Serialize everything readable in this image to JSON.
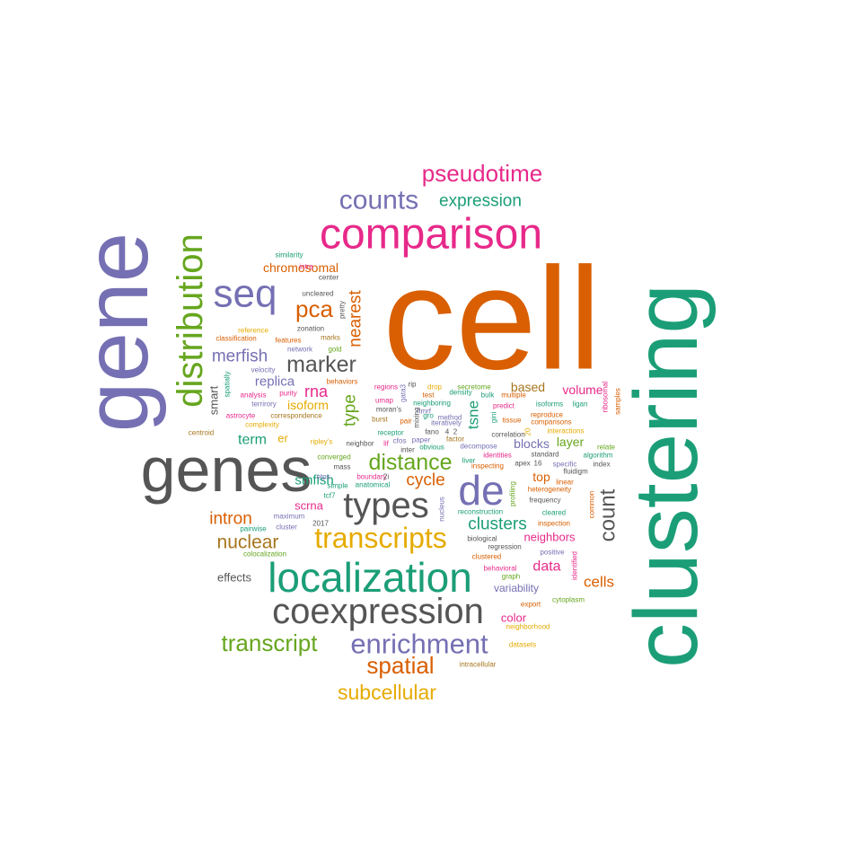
{
  "palette": {
    "orange": "#d95f02",
    "teal": "#1b9e77",
    "purple": "#7570b3",
    "magenta": "#e7298a",
    "green": "#66a61e",
    "gold": "#e6ab02",
    "brown": "#a6761d",
    "gray": "#555555"
  },
  "words": [
    {
      "text": "cell",
      "color": "orange"
    },
    {
      "text": "clustering",
      "color": "teal"
    },
    {
      "text": "gene",
      "color": "purple"
    },
    {
      "text": "genes",
      "color": "gray"
    },
    {
      "text": "comparison",
      "color": "magenta"
    },
    {
      "text": "localization",
      "color": "teal"
    },
    {
      "text": "coexpression",
      "color": "gray"
    },
    {
      "text": "distribution",
      "color": "green"
    },
    {
      "text": "seq",
      "color": "purple"
    },
    {
      "text": "de",
      "color": "purple"
    },
    {
      "text": "types",
      "color": "gray"
    },
    {
      "text": "counts",
      "color": "purple"
    },
    {
      "text": "pseudotime",
      "color": "magenta"
    },
    {
      "text": "transcripts",
      "color": "gold"
    },
    {
      "text": "enrichment",
      "color": "purple"
    },
    {
      "text": "transcript",
      "color": "green"
    },
    {
      "text": "expression",
      "color": "teal"
    },
    {
      "text": "spatial",
      "color": "orange"
    },
    {
      "text": "subcellular",
      "color": "gold"
    },
    {
      "text": "distance",
      "color": "green"
    },
    {
      "text": "marker",
      "color": "gray"
    },
    {
      "text": "pca",
      "color": "orange"
    },
    {
      "text": "count",
      "color": "gray"
    },
    {
      "text": "nearest",
      "color": "orange"
    },
    {
      "text": "merfish",
      "color": "purple"
    },
    {
      "text": "nuclear",
      "color": "brown"
    },
    {
      "text": "intron",
      "color": "orange"
    },
    {
      "text": "clusters",
      "color": "teal"
    },
    {
      "text": "cycle",
      "color": "orange"
    },
    {
      "text": "type",
      "color": "green"
    },
    {
      "text": "tsne",
      "color": "teal"
    },
    {
      "text": "rna",
      "color": "magenta"
    },
    {
      "text": "replica",
      "color": "purple"
    },
    {
      "text": "chromosomal",
      "color": "orange"
    },
    {
      "text": "isoform",
      "color": "gold"
    },
    {
      "text": "term",
      "color": "teal"
    },
    {
      "text": "data",
      "color": "magenta"
    },
    {
      "text": "cells",
      "color": "orange"
    },
    {
      "text": "scrna",
      "color": "magenta"
    },
    {
      "text": "smfish",
      "color": "teal"
    },
    {
      "text": "neighbors",
      "color": "magenta"
    },
    {
      "text": "blocks",
      "color": "purple"
    },
    {
      "text": "layer",
      "color": "green"
    },
    {
      "text": "top",
      "color": "orange"
    },
    {
      "text": "volume",
      "color": "magenta"
    },
    {
      "text": "based",
      "color": "brown"
    },
    {
      "text": "variability",
      "color": "purple"
    },
    {
      "text": "color",
      "color": "magenta"
    },
    {
      "text": "smart",
      "color": "gray"
    },
    {
      "text": "effects",
      "color": "gray"
    },
    {
      "text": "er",
      "color": "gold"
    },
    {
      "text": "similarity",
      "color": "teal"
    },
    {
      "text": "intra",
      "color": "magenta"
    },
    {
      "text": "center",
      "color": "gray"
    },
    {
      "text": "uncleared",
      "color": "gray"
    },
    {
      "text": "pretty",
      "color": "gray"
    },
    {
      "text": "zonation",
      "color": "gray"
    },
    {
      "text": "reference",
      "color": "gold"
    },
    {
      "text": "classification",
      "color": "orange"
    },
    {
      "text": "features",
      "color": "orange"
    },
    {
      "text": "marks",
      "color": "brown"
    },
    {
      "text": "network",
      "color": "purple"
    },
    {
      "text": "gold",
      "color": "green"
    },
    {
      "text": "velocity",
      "color": "purple"
    },
    {
      "text": "spatially",
      "color": "teal"
    },
    {
      "text": "analysis",
      "color": "magenta"
    },
    {
      "text": "purity",
      "color": "magenta"
    },
    {
      "text": "behaviors",
      "color": "orange"
    },
    {
      "text": "terrirory",
      "color": "purple"
    },
    {
      "text": "astrocyte",
      "color": "magenta"
    },
    {
      "text": "correspondence",
      "color": "brown"
    },
    {
      "text": "complexity",
      "color": "gold"
    },
    {
      "text": "centroid",
      "color": "brown"
    },
    {
      "text": "ripley's",
      "color": "gold"
    },
    {
      "text": "neighbor",
      "color": "gray"
    },
    {
      "text": "converged",
      "color": "green"
    },
    {
      "text": "mass",
      "color": "gray"
    },
    {
      "text": "etps",
      "color": "purple"
    },
    {
      "text": "simple",
      "color": "teal"
    },
    {
      "text": "anatomical",
      "color": "teal"
    },
    {
      "text": "tcf7",
      "color": "teal"
    },
    {
      "text": "maximum",
      "color": "purple"
    },
    {
      "text": "2017",
      "color": "gray"
    },
    {
      "text": "pairwise",
      "color": "teal"
    },
    {
      "text": "cluster",
      "color": "purple"
    },
    {
      "text": "colocalization",
      "color": "green"
    },
    {
      "text": "regions",
      "color": "magenta"
    },
    {
      "text": "umap",
      "color": "magenta"
    },
    {
      "text": "moran's",
      "color": "gray"
    },
    {
      "text": "burst",
      "color": "brown"
    },
    {
      "text": "pair",
      "color": "orange"
    },
    {
      "text": "receptor",
      "color": "teal"
    },
    {
      "text": "lif",
      "color": "magenta"
    },
    {
      "text": "cfos",
      "color": "purple"
    },
    {
      "text": "inter",
      "color": "gray"
    },
    {
      "text": "boundary",
      "color": "magenta"
    },
    {
      "text": "2i",
      "color": "gray"
    },
    {
      "text": "rip",
      "color": "gray"
    },
    {
      "text": "gata3",
      "color": "purple"
    },
    {
      "text": "test",
      "color": "orange"
    },
    {
      "text": "drop",
      "color": "gold"
    },
    {
      "text": "neighboring",
      "color": "teal"
    },
    {
      "text": "hmrf",
      "color": "purple"
    },
    {
      "text": "gro",
      "color": "teal"
    },
    {
      "text": "method",
      "color": "purple"
    },
    {
      "text": "mixing",
      "color": "gray"
    },
    {
      "text": "paper",
      "color": "purple"
    },
    {
      "text": "fano",
      "color": "gray"
    },
    {
      "text": "4",
      "color": "gray"
    },
    {
      "text": "2",
      "color": "gray"
    },
    {
      "text": "obvious",
      "color": "teal"
    },
    {
      "text": "factor",
      "color": "brown"
    },
    {
      "text": "iteratively",
      "color": "purple"
    },
    {
      "text": "decompose",
      "color": "purple"
    },
    {
      "text": "nucleus",
      "color": "purple"
    },
    {
      "text": "liver",
      "color": "teal"
    },
    {
      "text": "inspecting",
      "color": "orange"
    },
    {
      "text": "secretome",
      "color": "green"
    },
    {
      "text": "density",
      "color": "teal"
    },
    {
      "text": "bulk",
      "color": "teal"
    },
    {
      "text": "gini",
      "color": "teal"
    },
    {
      "text": "multiple",
      "color": "orange"
    },
    {
      "text": "predict",
      "color": "magenta"
    },
    {
      "text": "tissue",
      "color": "orange"
    },
    {
      "text": "correlation",
      "color": "gray"
    },
    {
      "text": "20",
      "color": "gold"
    },
    {
      "text": "identities",
      "color": "magenta"
    },
    {
      "text": "apex",
      "color": "gray"
    },
    {
      "text": "16",
      "color": "gray"
    },
    {
      "text": "reproduce",
      "color": "orange"
    },
    {
      "text": "comparisons",
      "color": "orange"
    },
    {
      "text": "isoforms",
      "color": "teal"
    },
    {
      "text": "ligan",
      "color": "teal"
    },
    {
      "text": "interactions",
      "color": "gold"
    },
    {
      "text": "standard",
      "color": "gray"
    },
    {
      "text": "specific",
      "color": "purple"
    },
    {
      "text": "fluidigm",
      "color": "gray"
    },
    {
      "text": "algorithm",
      "color": "teal"
    },
    {
      "text": "index",
      "color": "gray"
    },
    {
      "text": "relate",
      "color": "green"
    },
    {
      "text": "samples",
      "color": "orange"
    },
    {
      "text": "ribosomal",
      "color": "magenta"
    },
    {
      "text": "linear",
      "color": "orange"
    },
    {
      "text": "heterogeneity",
      "color": "orange"
    },
    {
      "text": "frequency",
      "color": "gray"
    },
    {
      "text": "common",
      "color": "orange"
    },
    {
      "text": "profiling",
      "color": "green"
    },
    {
      "text": "reconstruction",
      "color": "teal"
    },
    {
      "text": "cleared",
      "color": "teal"
    },
    {
      "text": "inspection",
      "color": "orange"
    },
    {
      "text": "biological",
      "color": "gray"
    },
    {
      "text": "regression",
      "color": "gray"
    },
    {
      "text": "positive",
      "color": "purple"
    },
    {
      "text": "clustered",
      "color": "orange"
    },
    {
      "text": "identified",
      "color": "magenta"
    },
    {
      "text": "behavioral",
      "color": "magenta"
    },
    {
      "text": "graph",
      "color": "green"
    },
    {
      "text": "export",
      "color": "orange"
    },
    {
      "text": "cytoplasm",
      "color": "green"
    },
    {
      "text": "neighborhood",
      "color": "gold"
    },
    {
      "text": "datasets",
      "color": "gold"
    },
    {
      "text": "intracellular",
      "color": "brown"
    }
  ]
}
